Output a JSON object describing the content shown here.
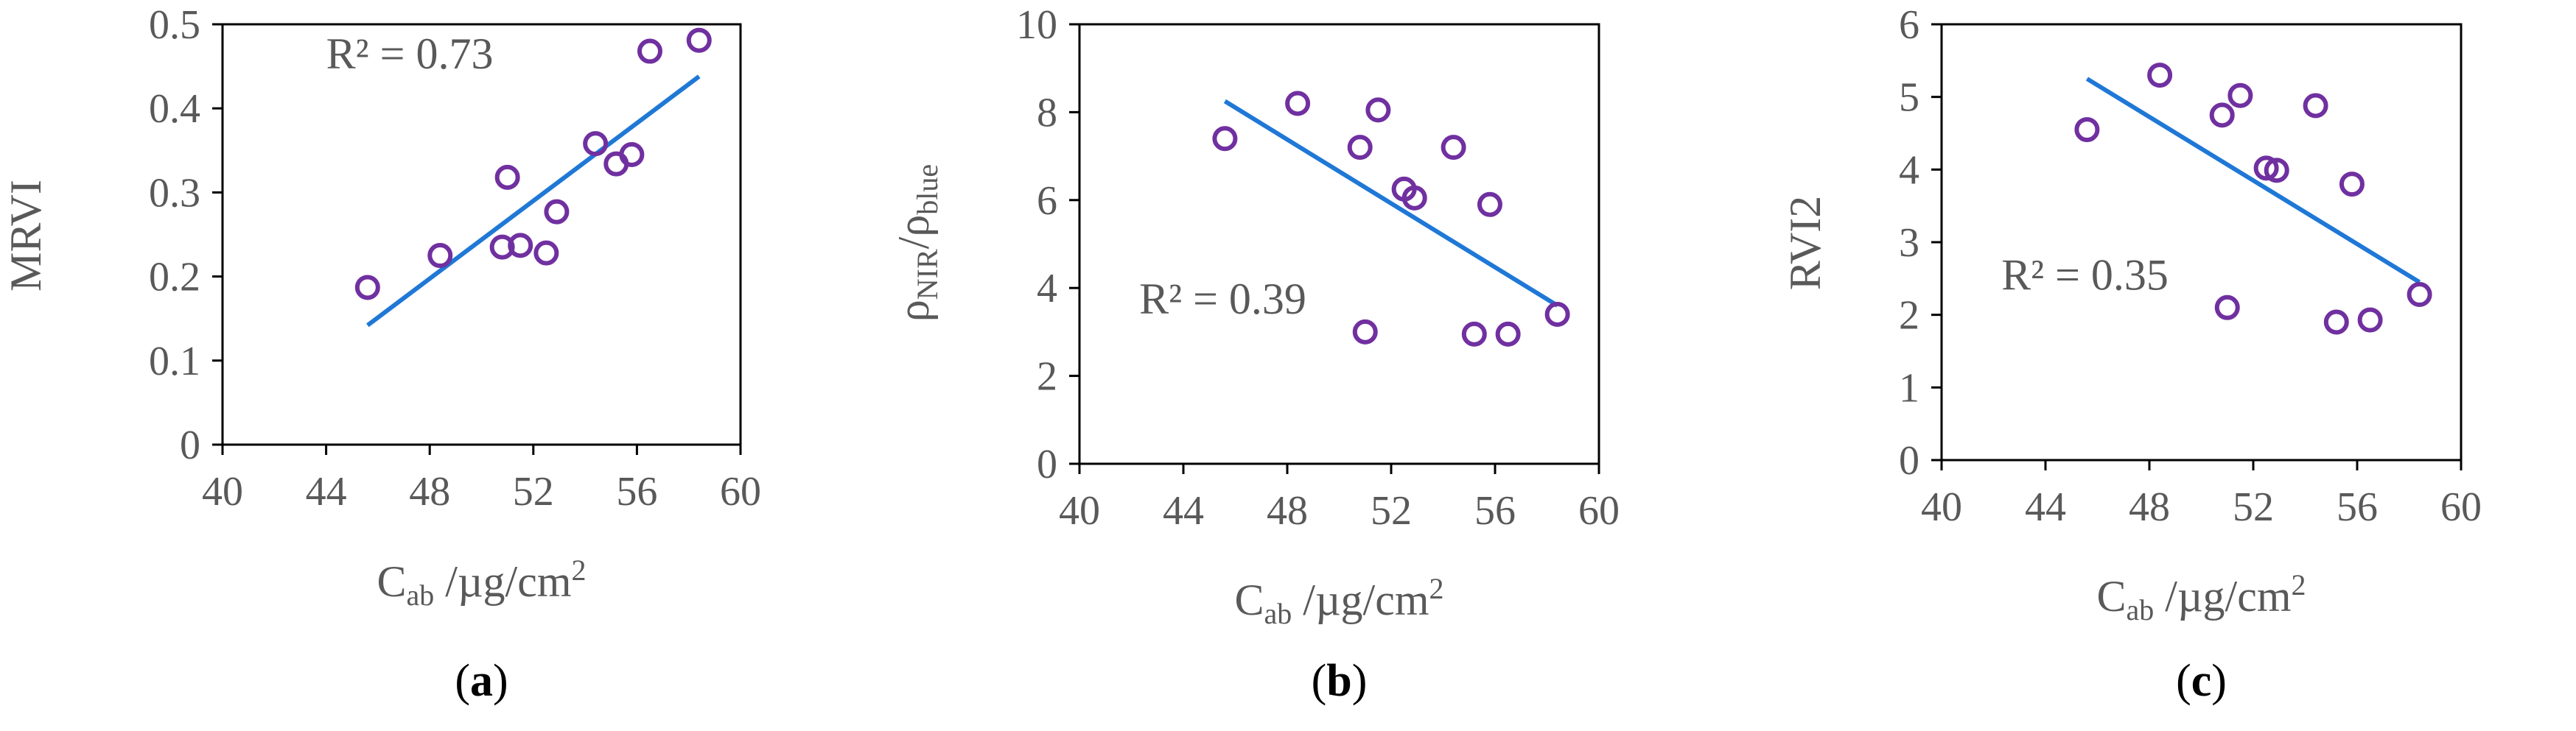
{
  "colors": {
    "point": "#7030a0",
    "trend": "#1f78d6",
    "axis": "#000000",
    "text": "#595959"
  },
  "chart_data": [
    {
      "type": "scatter",
      "panel": "(a)",
      "panel_open": "(",
      "panel_letter": "a",
      "panel_close": ")",
      "ylabel": "MRVI",
      "xlabel_main": "C",
      "xlabel_sub": "ab",
      "xlabel_unit": "/µg/cm",
      "xlabel_sup": "2",
      "xlim": [
        40,
        60
      ],
      "ylim": [
        0,
        0.5
      ],
      "xticks": [
        40,
        44,
        48,
        52,
        56,
        60
      ],
      "yticks": [
        0,
        0.1,
        0.2,
        0.3,
        0.4,
        0.5
      ],
      "xtick_labels": [
        "40",
        "44",
        "48",
        "52",
        "56",
        "60"
      ],
      "ytick_labels": [
        "0",
        "0.1",
        "0.2",
        "0.3",
        "0.4",
        "0.5"
      ],
      "r2_text": "R² = 0.73",
      "r2_pos": [
        44,
        0.465
      ],
      "x": [
        45.6,
        48.4,
        50.8,
        51.0,
        51.5,
        52.5,
        52.9,
        54.4,
        55.2,
        55.8,
        56.5,
        58.4
      ],
      "y": [
        0.187,
        0.225,
        0.235,
        0.318,
        0.237,
        0.228,
        0.277,
        0.358,
        0.334,
        0.345,
        0.468,
        0.481
      ],
      "trendline": {
        "x": [
          45.6,
          58.4
        ],
        "y": [
          0.142,
          0.438
        ]
      }
    },
    {
      "type": "scatter",
      "panel": "(b)",
      "panel_open": "(",
      "panel_letter": "b",
      "panel_close": ")",
      "ylabel_main": "ρ",
      "ylabel_sub": "NIR",
      "ylabel_mid": "/ρ",
      "ylabel_sub2": "blue",
      "xlabel_main": "C",
      "xlabel_sub": "ab",
      "xlabel_unit": "/µg/cm",
      "xlabel_sup": "2",
      "xlim": [
        40,
        60
      ],
      "ylim": [
        0,
        10
      ],
      "xticks": [
        40,
        44,
        48,
        52,
        56,
        60
      ],
      "yticks": [
        0,
        2,
        4,
        6,
        8,
        10
      ],
      "xtick_labels": [
        "40",
        "44",
        "48",
        "52",
        "56",
        "60"
      ],
      "ytick_labels": [
        "0",
        "2",
        "4",
        "6",
        "8",
        "10"
      ],
      "r2_text": "R² = 0.39",
      "r2_pos": [
        42.3,
        3.75
      ],
      "x": [
        45.6,
        48.4,
        50.8,
        51.0,
        51.5,
        52.5,
        52.9,
        54.4,
        55.2,
        55.8,
        56.5,
        58.4
      ],
      "y": [
        7.4,
        8.2,
        7.2,
        3.0,
        8.05,
        6.25,
        6.05,
        7.2,
        2.95,
        5.9,
        2.95,
        3.4
      ],
      "trendline": {
        "x": [
          45.6,
          58.4
        ],
        "y": [
          8.25,
          3.6
        ]
      }
    },
    {
      "type": "scatter",
      "panel": "(c)",
      "panel_open": "(",
      "panel_letter": "c",
      "panel_close": ")",
      "ylabel": "RVI2",
      "xlabel_main": "C",
      "xlabel_sub": "ab",
      "xlabel_unit": "/µg/cm",
      "xlabel_sup": "2",
      "xlim": [
        40,
        60
      ],
      "ylim": [
        0,
        6
      ],
      "xticks": [
        40,
        44,
        48,
        52,
        56,
        60
      ],
      "yticks": [
        0,
        1,
        2,
        3,
        4,
        5,
        6
      ],
      "xtick_labels": [
        "40",
        "44",
        "48",
        "52",
        "56",
        "60"
      ],
      "ytick_labels": [
        "0",
        "1",
        "2",
        "3",
        "4",
        "5",
        "6"
      ],
      "r2_text": "R² = 0.35",
      "r2_pos": [
        42.3,
        2.55
      ],
      "x": [
        45.6,
        48.4,
        50.8,
        51.0,
        51.5,
        52.5,
        52.9,
        54.4,
        55.2,
        55.8,
        56.5,
        58.4
      ],
      "y": [
        4.55,
        5.3,
        4.75,
        2.1,
        5.02,
        4.02,
        3.99,
        4.88,
        1.9,
        3.8,
        1.93,
        2.28
      ],
      "trendline": {
        "x": [
          45.6,
          58.4
        ],
        "y": [
          5.25,
          2.45
        ]
      }
    }
  ]
}
